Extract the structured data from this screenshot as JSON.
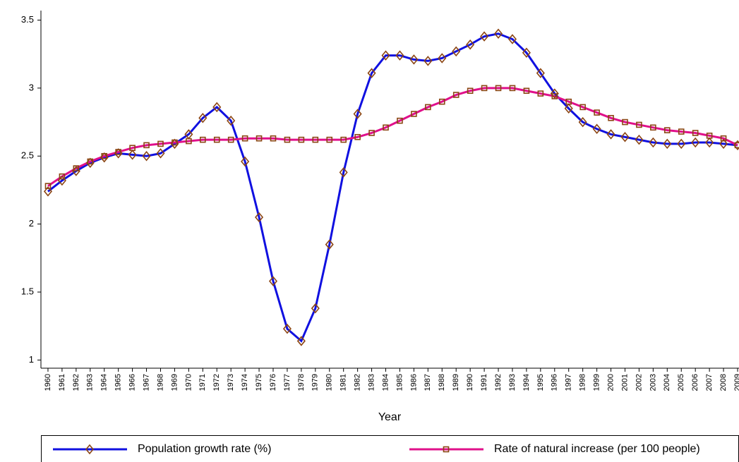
{
  "chart_data": {
    "type": "line",
    "x_label": "Year",
    "x": [
      1960,
      1961,
      1962,
      1963,
      1964,
      1965,
      1966,
      1967,
      1968,
      1969,
      1970,
      1971,
      1972,
      1973,
      1974,
      1975,
      1976,
      1977,
      1978,
      1979,
      1980,
      1981,
      1982,
      1983,
      1984,
      1985,
      1986,
      1987,
      1988,
      1989,
      1990,
      1991,
      1992,
      1993,
      1994,
      1995,
      1996,
      1997,
      1998,
      1999,
      2000,
      2001,
      2002,
      2003,
      2004,
      2005,
      2006,
      2007,
      2008,
      2009
    ],
    "xlim": [
      1959.5,
      2009
    ],
    "xticks": [
      1960,
      1961,
      1962,
      1963,
      1964,
      1965,
      1966,
      1967,
      1968,
      1969,
      1970,
      1971,
      1972,
      1973,
      1974,
      1975,
      1976,
      1977,
      1978,
      1979,
      1980,
      1981,
      1982,
      1983,
      1984,
      1985,
      1986,
      1987,
      1988,
      1989,
      1990,
      1991,
      1992,
      1993,
      1994,
      1995,
      1996,
      1997,
      1998,
      1999,
      2000,
      2001,
      2002,
      2003,
      2004,
      2005,
      2006,
      2007,
      2008,
      2009
    ],
    "ylim": [
      0.94,
      3.57
    ],
    "yticks": [
      1,
      1.5,
      2,
      2.5,
      3,
      3.5
    ],
    "grid": false,
    "legend": "bottom",
    "series": [
      {
        "name": "Population growth rate (%)",
        "color": "#1010e0",
        "marker": "diamond",
        "marker_color": "#8b4513",
        "values": [
          2.24,
          2.32,
          2.39,
          2.45,
          2.49,
          2.52,
          2.51,
          2.5,
          2.52,
          2.59,
          2.66,
          2.78,
          2.86,
          2.76,
          2.46,
          2.05,
          1.58,
          1.23,
          1.14,
          1.38,
          1.85,
          2.38,
          2.81,
          3.11,
          3.24,
          3.24,
          3.21,
          3.2,
          3.22,
          3.27,
          3.32,
          3.38,
          3.4,
          3.36,
          3.26,
          3.11,
          2.96,
          2.85,
          2.75,
          2.7,
          2.66,
          2.64,
          2.62,
          2.6,
          2.59,
          2.59,
          2.6,
          2.6,
          2.59,
          2.58
        ]
      },
      {
        "name": "Rate of natural increase (per 100 people)",
        "color": "#e0108a",
        "marker": "square",
        "marker_color": "#8b4513",
        "values": [
          2.28,
          2.35,
          2.41,
          2.46,
          2.5,
          2.53,
          2.56,
          2.58,
          2.59,
          2.6,
          2.61,
          2.62,
          2.62,
          2.62,
          2.63,
          2.63,
          2.63,
          2.62,
          2.62,
          2.62,
          2.62,
          2.62,
          2.64,
          2.67,
          2.71,
          2.76,
          2.81,
          2.86,
          2.9,
          2.95,
          2.98,
          3.0,
          3.0,
          3.0,
          2.98,
          2.96,
          2.94,
          2.9,
          2.86,
          2.82,
          2.78,
          2.75,
          2.73,
          2.71,
          2.69,
          2.68,
          2.67,
          2.65,
          2.63,
          2.58
        ]
      }
    ]
  }
}
